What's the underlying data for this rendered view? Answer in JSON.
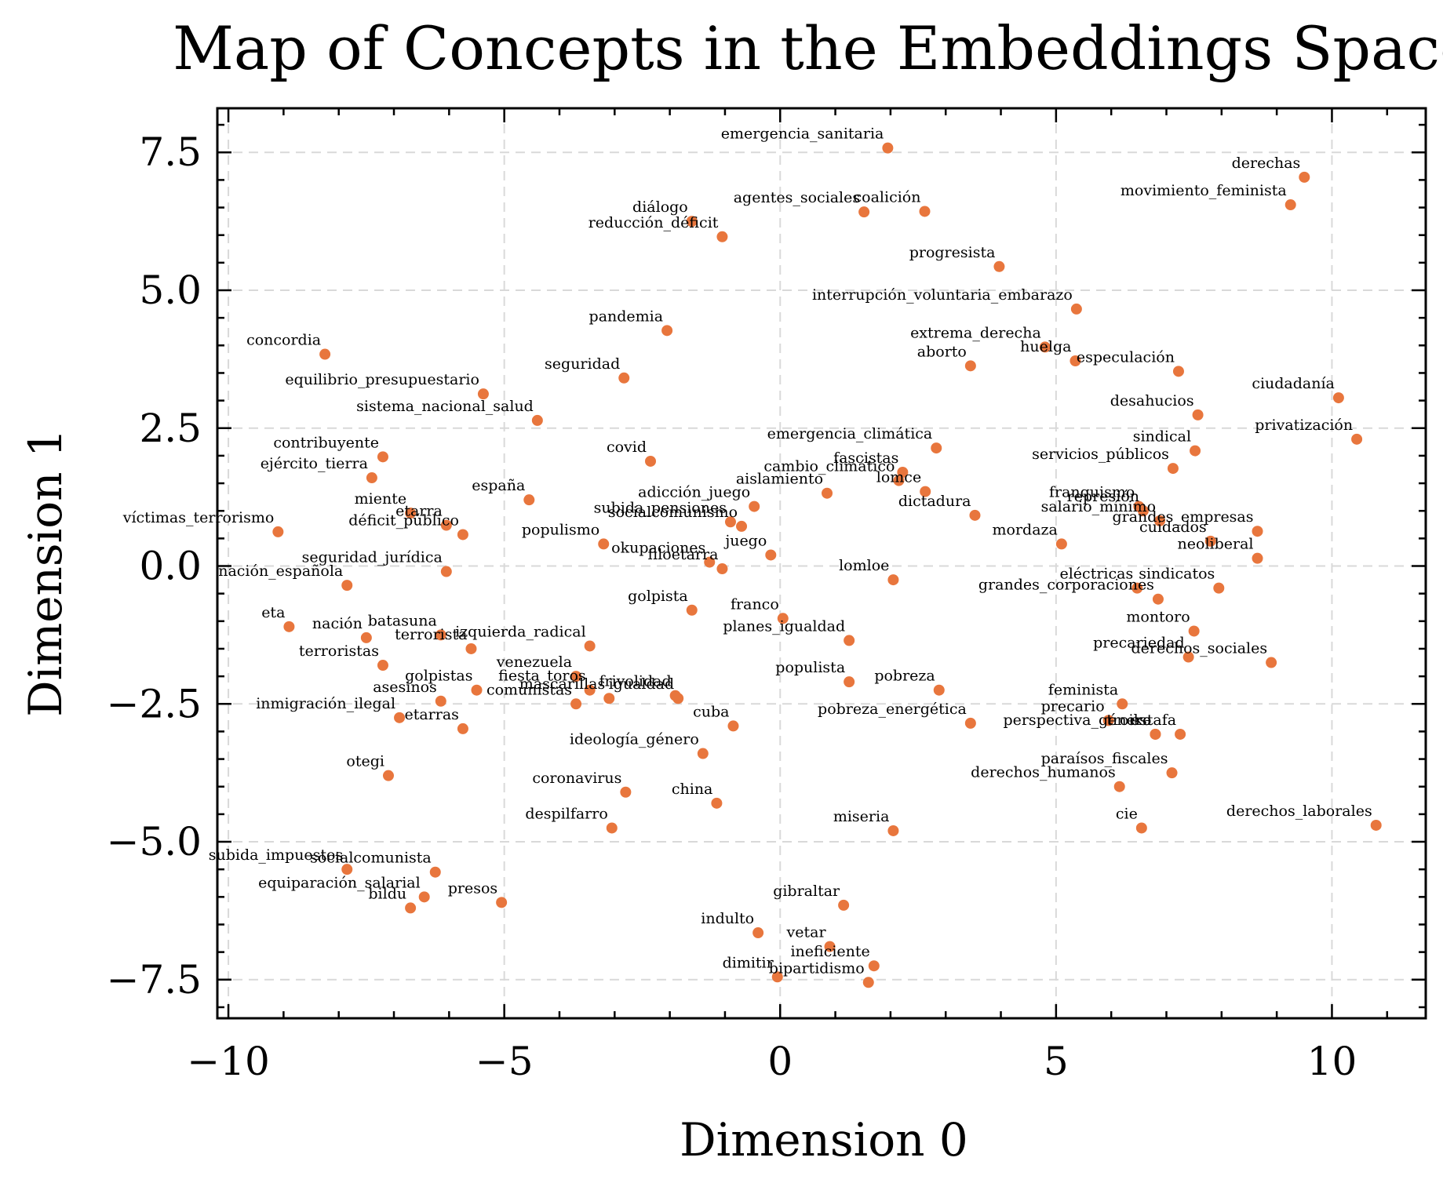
{
  "chart_data": {
    "type": "scatter",
    "title": "Map of Concepts in the Embeddings Space",
    "xlabel": "Dimension 0",
    "ylabel": "Dimension 1",
    "xlim": [
      -10.2,
      11.7
    ],
    "ylim": [
      -8.2,
      8.3
    ],
    "xticks": [
      -10,
      -5,
      0,
      5,
      10
    ],
    "yticks": [
      7.5,
      5.0,
      2.5,
      0.0,
      -2.5,
      -5.0,
      -7.5
    ],
    "xtick_labels": [
      "−10",
      "−5",
      "0",
      "5",
      "10"
    ],
    "ytick_labels": [
      "7.5",
      "5.0",
      "2.5",
      "0.0",
      "−2.5",
      "−5.0",
      "−7.5"
    ],
    "grid": true,
    "color": "#e8763d",
    "points": [
      {
        "label": "emergencia_sanitaria",
        "x": 1.95,
        "y": 7.58
      },
      {
        "label": "derechas",
        "x": 9.5,
        "y": 7.05
      },
      {
        "label": "movimiento_feminista",
        "x": 9.25,
        "y": 6.55
      },
      {
        "label": "diálogo",
        "x": -1.6,
        "y": 6.25
      },
      {
        "label": "agentes_sociales",
        "x": 1.52,
        "y": 6.42
      },
      {
        "label": "coalición",
        "x": 2.62,
        "y": 6.43
      },
      {
        "label": "reducción_déficit",
        "x": -1.05,
        "y": 5.97
      },
      {
        "label": "progresista",
        "x": 3.97,
        "y": 5.43
      },
      {
        "label": "interrupción_voluntaria_embarazo",
        "x": 5.37,
        "y": 4.66
      },
      {
        "label": "pandemia",
        "x": -2.05,
        "y": 4.27
      },
      {
        "label": "concordia",
        "x": -8.25,
        "y": 3.84
      },
      {
        "label": "extrema_derecha",
        "x": 4.8,
        "y": 3.97
      },
      {
        "label": "huelga",
        "x": 5.35,
        "y": 3.72
      },
      {
        "label": "aborto",
        "x": 3.45,
        "y": 3.63
      },
      {
        "label": "especulación",
        "x": 7.22,
        "y": 3.53
      },
      {
        "label": "seguridad",
        "x": -2.83,
        "y": 3.41
      },
      {
        "label": "equilibrio_presupuestario",
        "x": -5.38,
        "y": 3.12
      },
      {
        "label": "ciudadanía",
        "x": 10.12,
        "y": 3.05
      },
      {
        "label": "sistema_nacional_salud",
        "x": -4.4,
        "y": 2.64
      },
      {
        "label": "desahucios",
        "x": 7.57,
        "y": 2.74
      },
      {
        "label": "emergencia_climática",
        "x": 2.83,
        "y": 2.14
      },
      {
        "label": "privatización",
        "x": 10.45,
        "y": 2.3
      },
      {
        "label": "sindical",
        "x": 7.52,
        "y": 2.09
      },
      {
        "label": "contribuyente",
        "x": -7.2,
        "y": 1.98
      },
      {
        "label": "covid",
        "x": -2.35,
        "y": 1.9
      },
      {
        "label": "servicios_públicos",
        "x": 7.12,
        "y": 1.77
      },
      {
        "label": "ejército_tierra",
        "x": -7.4,
        "y": 1.6
      },
      {
        "label": "fascistas",
        "x": 2.22,
        "y": 1.7
      },
      {
        "label": "cambio_climático",
        "x": 2.15,
        "y": 1.55
      },
      {
        "label": "lomce",
        "x": 2.63,
        "y": 1.35
      },
      {
        "label": "aislamiento",
        "x": 0.85,
        "y": 1.32
      },
      {
        "label": "españa",
        "x": -4.55,
        "y": 1.2
      },
      {
        "label": "adicción_juego",
        "x": -0.47,
        "y": 1.08
      },
      {
        "label": "miente",
        "x": -6.7,
        "y": 0.96
      },
      {
        "label": "dictadura",
        "x": 3.53,
        "y": 0.92
      },
      {
        "label": "franquismo",
        "x": 6.5,
        "y": 1.08
      },
      {
        "label": "represión",
        "x": 6.58,
        "y": 1.0
      },
      {
        "label": "subida_pensiones",
        "x": -0.9,
        "y": 0.8
      },
      {
        "label": "socialcomunismo",
        "x": -0.7,
        "y": 0.72
      },
      {
        "label": "víctimas_terrorismo",
        "x": -9.1,
        "y": 0.62
      },
      {
        "label": "etarra",
        "x": -6.05,
        "y": 0.74
      },
      {
        "label": "déficit_público",
        "x": -5.75,
        "y": 0.57
      },
      {
        "label": "grandes_empresas",
        "x": 8.65,
        "y": 0.63
      },
      {
        "label": "salario_mínimo",
        "x": 6.88,
        "y": 0.82
      },
      {
        "label": "populismo",
        "x": -3.2,
        "y": 0.4
      },
      {
        "label": "mordaza",
        "x": 5.1,
        "y": 0.4
      },
      {
        "label": "cuidados",
        "x": 7.8,
        "y": 0.45
      },
      {
        "label": "juego",
        "x": -0.17,
        "y": 0.2
      },
      {
        "label": "okupaciones",
        "x": -1.28,
        "y": 0.07
      },
      {
        "label": "filoetarra",
        "x": -1.05,
        "y": -0.05
      },
      {
        "label": "seguridad_jurídica",
        "x": -6.05,
        "y": -0.1
      },
      {
        "label": "neoliberal",
        "x": 8.65,
        "y": 0.14
      },
      {
        "label": "lomloe",
        "x": 2.05,
        "y": -0.25
      },
      {
        "label": "nación_española",
        "x": -7.85,
        "y": -0.35
      },
      {
        "label": "eléctricas",
        "x": 6.47,
        "y": -0.4
      },
      {
        "label": "sindicatos",
        "x": 7.95,
        "y": -0.4
      },
      {
        "label": "grandes_corporaciones",
        "x": 6.85,
        "y": -0.6
      },
      {
        "label": "golpista",
        "x": -1.6,
        "y": -0.8
      },
      {
        "label": "franco",
        "x": 0.05,
        "y": -0.95
      },
      {
        "label": "eta",
        "x": -8.9,
        "y": -1.1
      },
      {
        "label": "montoro",
        "x": 7.5,
        "y": -1.18
      },
      {
        "label": "nación",
        "x": -7.5,
        "y": -1.3
      },
      {
        "label": "batasuna",
        "x": -6.15,
        "y": -1.25
      },
      {
        "label": "planes_igualdad",
        "x": 1.25,
        "y": -1.35
      },
      {
        "label": "terrorista",
        "x": -5.6,
        "y": -1.5
      },
      {
        "label": "izquierda_radical",
        "x": -3.45,
        "y": -1.45
      },
      {
        "label": "precariedad",
        "x": 7.4,
        "y": -1.65
      },
      {
        "label": "derechos_sociales",
        "x": 8.9,
        "y": -1.75
      },
      {
        "label": "terroristas",
        "x": -7.2,
        "y": -1.8
      },
      {
        "label": "venezuela",
        "x": -3.7,
        "y": -2.0
      },
      {
        "label": "populista",
        "x": 1.25,
        "y": -2.1
      },
      {
        "label": "fiesta_toros",
        "x": -3.45,
        "y": -2.25
      },
      {
        "label": "golpistas",
        "x": -5.5,
        "y": -2.25
      },
      {
        "label": "pobreza",
        "x": 2.88,
        "y": -2.25
      },
      {
        "label": "asesinos",
        "x": -6.15,
        "y": -2.45
      },
      {
        "label": "mascarillas",
        "x": -3.1,
        "y": -2.4
      },
      {
        "label": "frivolidad",
        "x": -1.9,
        "y": -2.35
      },
      {
        "label": "igualdad",
        "x": -1.85,
        "y": -2.4
      },
      {
        "label": "feminista",
        "x": 6.2,
        "y": -2.5
      },
      {
        "label": "inmigración_ilegal",
        "x": -6.9,
        "y": -2.75
      },
      {
        "label": "comunistas",
        "x": -3.7,
        "y": -2.5
      },
      {
        "label": "etarras",
        "x": -5.75,
        "y": -2.95
      },
      {
        "label": "cuba",
        "x": -0.85,
        "y": -2.9
      },
      {
        "label": "precario",
        "x": 5.95,
        "y": -2.8
      },
      {
        "label": "pobreza_energética",
        "x": 3.45,
        "y": -2.85
      },
      {
        "label": "perspectiva_género",
        "x": 6.8,
        "y": -3.05
      },
      {
        "label": "troika",
        "x": 6.8,
        "y": -3.05
      },
      {
        "label": "estafa",
        "x": 7.25,
        "y": -3.05
      },
      {
        "label": "ideología_género",
        "x": -1.4,
        "y": -3.4
      },
      {
        "label": "paraísos_fiscales",
        "x": 7.1,
        "y": -3.75
      },
      {
        "label": "otegi",
        "x": -7.1,
        "y": -3.8
      },
      {
        "label": "derechos_humanos",
        "x": 6.15,
        "y": -4.0
      },
      {
        "label": "coronavirus",
        "x": -2.8,
        "y": -4.1
      },
      {
        "label": "china",
        "x": -1.15,
        "y": -4.3
      },
      {
        "label": "despilfarro",
        "x": -3.05,
        "y": -4.75
      },
      {
        "label": "cie",
        "x": 6.55,
        "y": -4.75
      },
      {
        "label": "derechos_laborales",
        "x": 10.8,
        "y": -4.7
      },
      {
        "label": "miseria",
        "x": 2.05,
        "y": -4.8
      },
      {
        "label": "subida_impuestos",
        "x": -7.85,
        "y": -5.5
      },
      {
        "label": "socialcomunista",
        "x": -6.25,
        "y": -5.55
      },
      {
        "label": "equiparación_salarial",
        "x": -6.45,
        "y": -6.0
      },
      {
        "label": "bildu",
        "x": -6.7,
        "y": -6.2
      },
      {
        "label": "presos",
        "x": -5.05,
        "y": -6.1
      },
      {
        "label": "gibraltar",
        "x": 1.15,
        "y": -6.15
      },
      {
        "label": "indulto",
        "x": -0.4,
        "y": -6.65
      },
      {
        "label": "vetar",
        "x": 0.9,
        "y": -6.9
      },
      {
        "label": "ineficiente",
        "x": 1.7,
        "y": -7.25
      },
      {
        "label": "dimitir",
        "x": -0.05,
        "y": -7.45
      },
      {
        "label": "bipartidismo",
        "x": 1.6,
        "y": -7.55
      }
    ]
  }
}
